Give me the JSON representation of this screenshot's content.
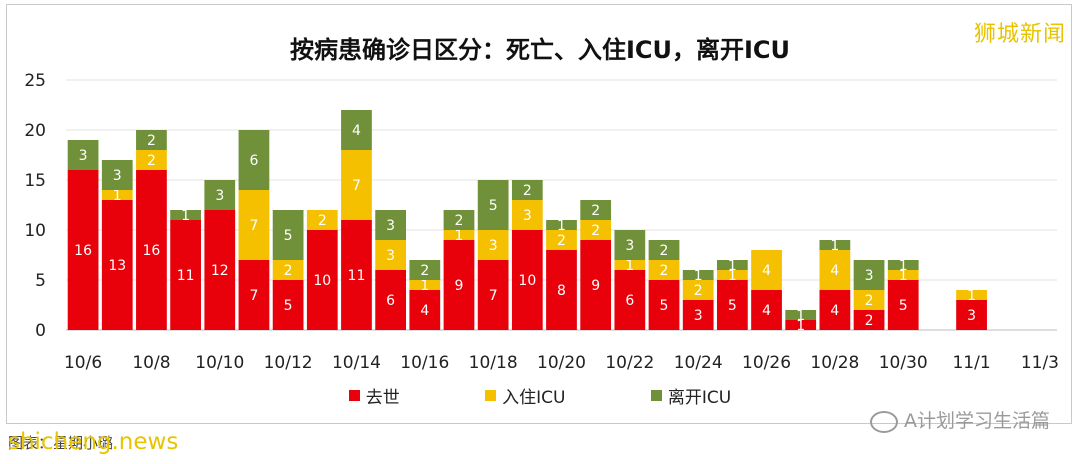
{
  "watermarks": {
    "top_right": "狮城新闻",
    "bottom_left": "shicheng.news",
    "bottom_right": "A计划学习生活篇",
    "source": "图表：星期小璐"
  },
  "colors": {
    "deaths": "#e8000b",
    "icu_in": "#f5c000",
    "icu_out": "#70913a"
  },
  "chart_data": {
    "type": "bar",
    "stacked": true,
    "title": "按病患确诊日区分：死亡、入住ICU，离开ICU",
    "ylim": [
      0,
      25
    ],
    "yticks": [
      0,
      5,
      10,
      15,
      20,
      25
    ],
    "grid": true,
    "legend_position": "bottom",
    "categories": [
      "10/6",
      "10/7",
      "10/8",
      "10/9",
      "10/10",
      "10/11",
      "10/12",
      "10/13",
      "10/14",
      "10/15",
      "10/16",
      "10/17",
      "10/18",
      "10/19",
      "10/20",
      "10/21",
      "10/22",
      "10/23",
      "10/24",
      "10/25",
      "10/26",
      "10/27",
      "10/28",
      "10/29",
      "10/30",
      "10/31",
      "11/1",
      "11/2",
      "11/3"
    ],
    "xtick_labels": [
      "10/6",
      "10/8",
      "10/10",
      "10/12",
      "10/14",
      "10/16",
      "10/18",
      "10/20",
      "10/22",
      "10/24",
      "10/26",
      "10/28",
      "10/30",
      "11/1",
      "11/3"
    ],
    "series": [
      {
        "name": "去世",
        "color_key": "deaths",
        "values": [
          16,
          13,
          16,
          11,
          12,
          7,
          5,
          10,
          11,
          6,
          4,
          9,
          7,
          10,
          8,
          9,
          6,
          5,
          3,
          5,
          4,
          1,
          4,
          2,
          5,
          0,
          3,
          0,
          0
        ]
      },
      {
        "name": "入住ICU",
        "color_key": "icu_in",
        "values": [
          0,
          1,
          2,
          0,
          0,
          7,
          2,
          2,
          7,
          3,
          1,
          1,
          3,
          3,
          2,
          2,
          1,
          2,
          2,
          1,
          4,
          0,
          4,
          2,
          1,
          0,
          1,
          0,
          0
        ]
      },
      {
        "name": "离开ICU",
        "color_key": "icu_out",
        "values": [
          3,
          3,
          2,
          1,
          3,
          6,
          5,
          0,
          4,
          3,
          2,
          2,
          5,
          2,
          1,
          2,
          3,
          2,
          1,
          1,
          0,
          1,
          1,
          3,
          1,
          0,
          0,
          0,
          0
        ]
      }
    ]
  }
}
